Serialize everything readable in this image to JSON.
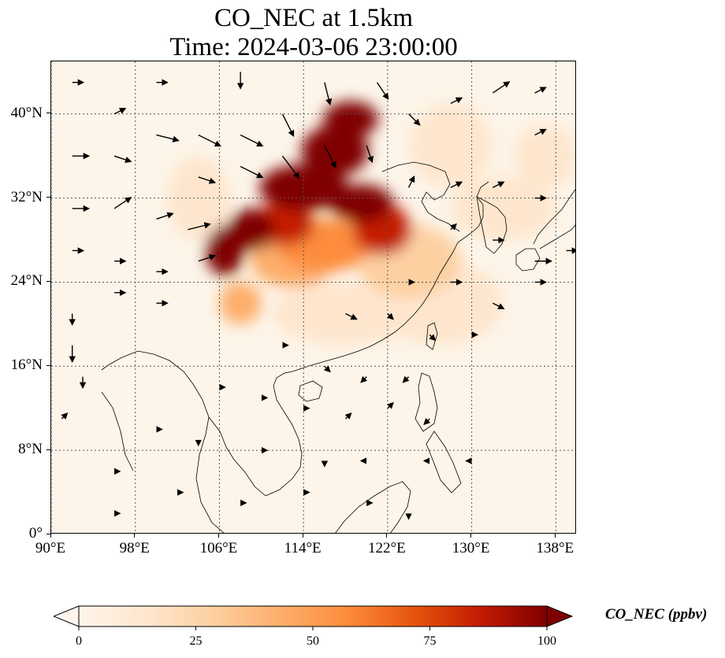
{
  "title": {
    "line1": "CO_NEC at 1.5km",
    "line2": "Time: 2024-03-06 23:00:00"
  },
  "map": {
    "lon_range": [
      90,
      140
    ],
    "lat_range": [
      0,
      45
    ],
    "x_ticks": [
      {
        "lon": 90,
        "label": "90°E"
      },
      {
        "lon": 98,
        "label": "98°E"
      },
      {
        "lon": 106,
        "label": "106°E"
      },
      {
        "lon": 114,
        "label": "114°E"
      },
      {
        "lon": 122,
        "label": "122°E"
      },
      {
        "lon": 130,
        "label": "130°E"
      },
      {
        "lon": 138,
        "label": "138°E"
      }
    ],
    "y_ticks": [
      {
        "lat": 0,
        "label": "0°"
      },
      {
        "lat": 8,
        "label": "8°N"
      },
      {
        "lat": 16,
        "label": "16°N"
      },
      {
        "lat": 24,
        "label": "24°N"
      },
      {
        "lat": 32,
        "label": "32°N"
      },
      {
        "lat": 40,
        "label": "40°N"
      }
    ],
    "gridlines": true
  },
  "colorbar": {
    "label": "CO_NEC (ppbv)",
    "min": 0,
    "max": 100,
    "ticks": [
      {
        "value": 0,
        "label": "0"
      },
      {
        "value": 25,
        "label": "25"
      },
      {
        "value": 50,
        "label": "50"
      },
      {
        "value": 75,
        "label": "75"
      },
      {
        "value": 100,
        "label": "100"
      }
    ],
    "colors": [
      "#fff5eb",
      "#fee6ce",
      "#fdd0a2",
      "#fdae6b",
      "#fd8d3c",
      "#e6550d",
      "#c41b02",
      "#7f0000"
    ],
    "extend": "both"
  },
  "chart_data": {
    "type": "heatmap",
    "variable": "CO_NEC",
    "units": "ppbv",
    "plumes": [
      {
        "lon": 118.5,
        "lat": 39.5,
        "rlon": 2.6,
        "rlat": 1.7,
        "value": 100
      },
      {
        "lon": 117.0,
        "lat": 36.5,
        "rlon": 3.2,
        "rlat": 2.4,
        "value": 100
      },
      {
        "lon": 114.0,
        "lat": 33.0,
        "rlon": 4.2,
        "rlat": 2.2,
        "value": 100
      },
      {
        "lon": 119.5,
        "lat": 31.5,
        "rlon": 3.0,
        "rlat": 1.8,
        "value": 100
      },
      {
        "lon": 109.0,
        "lat": 29.0,
        "rlon": 2.2,
        "rlat": 2.0,
        "value": 95
      },
      {
        "lon": 106.5,
        "lat": 27.0,
        "rlon": 1.8,
        "rlat": 2.4,
        "value": 95
      },
      {
        "lon": 112.0,
        "lat": 29.5,
        "rlon": 3.0,
        "rlat": 2.0,
        "value": 85
      },
      {
        "lon": 121.5,
        "lat": 29.0,
        "rlon": 2.8,
        "rlat": 2.4,
        "value": 85
      },
      {
        "lon": 113.0,
        "lat": 26.0,
        "rlon": 4.0,
        "rlat": 2.5,
        "value": 45
      },
      {
        "lon": 116.0,
        "lat": 27.5,
        "rlon": 4.5,
        "rlat": 2.5,
        "value": 50
      },
      {
        "lon": 108.0,
        "lat": 22.0,
        "rlon": 2.0,
        "rlat": 2.0,
        "value": 40
      },
      {
        "lon": 124.0,
        "lat": 26.0,
        "rlon": 5.0,
        "rlat": 3.5,
        "value": 25
      },
      {
        "lon": 118.0,
        "lat": 21.0,
        "rlon": 7.0,
        "rlat": 3.0,
        "value": 15
      },
      {
        "lon": 128.0,
        "lat": 37.0,
        "rlon": 4.0,
        "rlat": 4.0,
        "value": 15
      },
      {
        "lon": 133.0,
        "lat": 31.0,
        "rlon": 5.0,
        "rlat": 3.0,
        "value": 10
      },
      {
        "lon": 127.0,
        "lat": 22.0,
        "rlon": 6.0,
        "rlat": 4.0,
        "value": 10
      },
      {
        "lon": 104.0,
        "lat": 32.0,
        "rlon": 3.0,
        "rlat": 4.0,
        "value": 8
      },
      {
        "lon": 137.0,
        "lat": 36.0,
        "rlon": 3.0,
        "rlat": 3.0,
        "value": 12
      }
    ],
    "wind_vectors": [
      {
        "lon": 92,
        "lat": 43,
        "u": 2,
        "v": 0
      },
      {
        "lon": 96,
        "lat": 40,
        "u": 2,
        "v": 1
      },
      {
        "lon": 92,
        "lat": 36,
        "u": 3,
        "v": 0
      },
      {
        "lon": 96,
        "lat": 36,
        "u": 3,
        "v": -1
      },
      {
        "lon": 100,
        "lat": 38,
        "u": 4,
        "v": -1
      },
      {
        "lon": 104,
        "lat": 38,
        "u": 4,
        "v": -2
      },
      {
        "lon": 108,
        "lat": 38,
        "u": 4,
        "v": -2
      },
      {
        "lon": 112,
        "lat": 40,
        "u": 2,
        "v": -4
      },
      {
        "lon": 116,
        "lat": 43,
        "u": 1,
        "v": -4
      },
      {
        "lon": 121,
        "lat": 43,
        "u": 2,
        "v": -3
      },
      {
        "lon": 108,
        "lat": 44,
        "u": 0,
        "v": -3
      },
      {
        "lon": 100,
        "lat": 43,
        "u": 2,
        "v": 0
      },
      {
        "lon": 104,
        "lat": 34,
        "u": 3,
        "v": -1
      },
      {
        "lon": 108,
        "lat": 35,
        "u": 4,
        "v": -2
      },
      {
        "lon": 112,
        "lat": 36,
        "u": 3,
        "v": -4
      },
      {
        "lon": 116,
        "lat": 37,
        "u": 2,
        "v": -4
      },
      {
        "lon": 120,
        "lat": 37,
        "u": 1,
        "v": -3
      },
      {
        "lon": 124,
        "lat": 40,
        "u": 2,
        "v": -2
      },
      {
        "lon": 128,
        "lat": 41,
        "u": 2,
        "v": 1
      },
      {
        "lon": 132,
        "lat": 42,
        "u": 3,
        "v": 2
      },
      {
        "lon": 136,
        "lat": 42,
        "u": 2,
        "v": 1
      },
      {
        "lon": 136,
        "lat": 38,
        "u": 2,
        "v": 1
      },
      {
        "lon": 92,
        "lat": 31,
        "u": 3,
        "v": 0
      },
      {
        "lon": 96,
        "lat": 31,
        "u": 3,
        "v": 2
      },
      {
        "lon": 100,
        "lat": 30,
        "u": 3,
        "v": 1
      },
      {
        "lon": 103,
        "lat": 29,
        "u": 4,
        "v": 1
      },
      {
        "lon": 92,
        "lat": 27,
        "u": 2,
        "v": 0
      },
      {
        "lon": 96,
        "lat": 26,
        "u": 2,
        "v": 0
      },
      {
        "lon": 100,
        "lat": 25,
        "u": 2,
        "v": 0
      },
      {
        "lon": 104,
        "lat": 26,
        "u": 3,
        "v": 1
      },
      {
        "lon": 96,
        "lat": 23,
        "u": 2,
        "v": 0
      },
      {
        "lon": 100,
        "lat": 22,
        "u": 2,
        "v": 0
      },
      {
        "lon": 92,
        "lat": 21,
        "u": 0,
        "v": -2
      },
      {
        "lon": 92,
        "lat": 18,
        "u": 0,
        "v": -3
      },
      {
        "lon": 93,
        "lat": 15,
        "u": 0,
        "v": -2
      },
      {
        "lon": 91,
        "lat": 11,
        "u": 1,
        "v": 1
      },
      {
        "lon": 124,
        "lat": 33,
        "u": 1,
        "v": 2
      },
      {
        "lon": 128,
        "lat": 33,
        "u": 2,
        "v": 1
      },
      {
        "lon": 132,
        "lat": 33,
        "u": 2,
        "v": 1
      },
      {
        "lon": 136,
        "lat": 32,
        "u": 2,
        "v": 0
      },
      {
        "lon": 128,
        "lat": 29,
        "u": 1,
        "v": 1
      },
      {
        "lon": 132,
        "lat": 28,
        "u": 2,
        "v": 0
      },
      {
        "lon": 136,
        "lat": 26,
        "u": 3,
        "v": 0
      },
      {
        "lon": 139,
        "lat": 27,
        "u": 2,
        "v": 0
      },
      {
        "lon": 124,
        "lat": 24,
        "u": 1,
        "v": 0
      },
      {
        "lon": 128,
        "lat": 24,
        "u": 2,
        "v": 0
      },
      {
        "lon": 132,
        "lat": 22,
        "u": 2,
        "v": -1
      },
      {
        "lon": 136,
        "lat": 24,
        "u": 2,
        "v": 0
      },
      {
        "lon": 118,
        "lat": 21,
        "u": 2,
        "v": -1
      },
      {
        "lon": 122,
        "lat": 21,
        "u": 1,
        "v": -1
      },
      {
        "lon": 126,
        "lat": 19,
        "u": 1,
        "v": -1
      },
      {
        "lon": 130,
        "lat": 19,
        "u": 1,
        "v": 0
      },
      {
        "lon": 112,
        "lat": 18,
        "u": 1,
        "v": 0
      },
      {
        "lon": 116,
        "lat": 16,
        "u": 1,
        "v": -1
      },
      {
        "lon": 120,
        "lat": 15,
        "u": -1,
        "v": -1
      },
      {
        "lon": 124,
        "lat": 15,
        "u": -1,
        "v": -1
      },
      {
        "lon": 106,
        "lat": 14,
        "u": 1,
        "v": 0
      },
      {
        "lon": 110,
        "lat": 13,
        "u": 1,
        "v": 0
      },
      {
        "lon": 114,
        "lat": 12,
        "u": 1,
        "v": 0
      },
      {
        "lon": 118,
        "lat": 11,
        "u": 1,
        "v": 1
      },
      {
        "lon": 122,
        "lat": 12,
        "u": 1,
        "v": 1
      },
      {
        "lon": 126,
        "lat": 11,
        "u": -1,
        "v": -1
      },
      {
        "lon": 100,
        "lat": 10,
        "u": 1,
        "v": 0
      },
      {
        "lon": 104,
        "lat": 9,
        "u": 0,
        "v": -1
      },
      {
        "lon": 110,
        "lat": 8,
        "u": 1,
        "v": 0
      },
      {
        "lon": 116,
        "lat": 7,
        "u": 0,
        "v": -1
      },
      {
        "lon": 120,
        "lat": 7,
        "u": -1,
        "v": 0
      },
      {
        "lon": 126,
        "lat": 7,
        "u": -1,
        "v": 0
      },
      {
        "lon": 130,
        "lat": 7,
        "u": -1,
        "v": 0
      },
      {
        "lon": 96,
        "lat": 6,
        "u": 1,
        "v": 0
      },
      {
        "lon": 102,
        "lat": 4,
        "u": 1,
        "v": 0
      },
      {
        "lon": 108,
        "lat": 3,
        "u": 1,
        "v": 0
      },
      {
        "lon": 114,
        "lat": 4,
        "u": 1,
        "v": 0
      },
      {
        "lon": 120,
        "lat": 3,
        "u": 1,
        "v": 0
      },
      {
        "lon": 124,
        "lat": 2,
        "u": 0,
        "v": -1
      },
      {
        "lon": 96,
        "lat": 2,
        "u": 1,
        "v": 0
      }
    ]
  }
}
